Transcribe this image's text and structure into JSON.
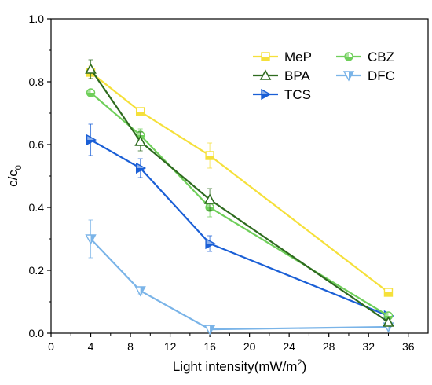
{
  "chart_data": {
    "type": "line",
    "title": "",
    "xlabel": "Light intensity(mW/m",
    "xlabel_sup": "2",
    "xlabel_end": ")",
    "ylabel": "c/c",
    "ylabel_sub": "0",
    "xlim": [
      0,
      38
    ],
    "ylim": [
      0,
      1.0
    ],
    "xticks": [
      "0",
      "4",
      "8",
      "12",
      "16",
      "20",
      "24",
      "28",
      "32",
      "36"
    ],
    "yticks": [
      "0.0",
      "0.2",
      "0.4",
      "0.6",
      "0.8",
      "1.0"
    ],
    "grid": false,
    "legend_position": "top-right",
    "x": [
      4,
      9,
      16,
      34
    ],
    "series": [
      {
        "name": "MeP",
        "color": "#f5e03a",
        "marker": "square-half",
        "values": [
          0.83,
          0.705,
          0.565,
          0.13
        ],
        "errors": [
          0.02,
          0.01,
          0.04,
          0.01
        ]
      },
      {
        "name": "CBZ",
        "color": "#6fcf5a",
        "marker": "circle-half",
        "values": [
          0.765,
          0.63,
          0.4,
          0.055
        ],
        "errors": [
          0.01,
          0.02,
          0.03,
          0.01
        ]
      },
      {
        "name": "BPA",
        "color": "#2e6b1f",
        "marker": "triangle-up",
        "values": [
          0.84,
          0.61,
          0.425,
          0.035
        ],
        "errors": [
          0.03,
          0.03,
          0.035,
          0.01
        ]
      },
      {
        "name": "DFC",
        "color": "#7ab4e8",
        "marker": "triangle-down",
        "values": [
          0.3,
          0.135,
          0.012,
          0.02
        ],
        "errors": [
          0.06,
          0.01,
          0.005,
          0.005
        ]
      },
      {
        "name": "TCS",
        "color": "#1a5fd6",
        "marker": "triangle-right",
        "values": [
          0.615,
          0.525,
          0.285,
          0.055
        ],
        "errors": [
          0.05,
          0.03,
          0.025,
          0.01
        ]
      }
    ]
  }
}
